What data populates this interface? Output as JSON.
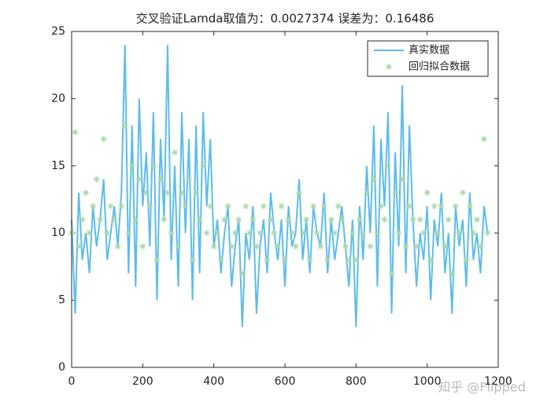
{
  "chart_data": {
    "type": "line_scatter",
    "title": "交叉验证Lamda取值为：0.0027374   误差为：0.16486",
    "x": [
      0,
      10,
      20,
      30,
      40,
      50,
      60,
      70,
      80,
      90,
      100,
      110,
      120,
      130,
      140,
      150,
      160,
      170,
      180,
      190,
      200,
      210,
      220,
      230,
      240,
      250,
      260,
      270,
      280,
      290,
      300,
      310,
      320,
      330,
      340,
      350,
      360,
      370,
      380,
      390,
      400,
      410,
      420,
      430,
      440,
      450,
      460,
      470,
      480,
      490,
      500,
      510,
      520,
      530,
      540,
      550,
      560,
      570,
      580,
      590,
      600,
      610,
      620,
      630,
      640,
      650,
      660,
      670,
      680,
      690,
      700,
      710,
      720,
      730,
      740,
      750,
      760,
      770,
      780,
      790,
      800,
      810,
      820,
      830,
      840,
      850,
      860,
      870,
      880,
      890,
      900,
      910,
      920,
      930,
      940,
      950,
      960,
      970,
      980,
      990,
      1000,
      1010,
      1020,
      1030,
      1040,
      1050,
      1060,
      1070,
      1080,
      1090,
      1100,
      1110,
      1120,
      1130,
      1140,
      1150,
      1160,
      1170
    ],
    "series": [
      {
        "name": "真实数据",
        "color": "#5dbcee",
        "mode": "line",
        "values": [
          11,
          4,
          13,
          8,
          10,
          7,
          12,
          9,
          11,
          14,
          8,
          10,
          12,
          9,
          13,
          24,
          7,
          18,
          6,
          20,
          12,
          16,
          9,
          19,
          5,
          17,
          11,
          24,
          8,
          15,
          6,
          19,
          10,
          17,
          5,
          18,
          7,
          19,
          12,
          17,
          9,
          11,
          7,
          10,
          12,
          6,
          9,
          11,
          3,
          10,
          8,
          12,
          4,
          9,
          11,
          7,
          13,
          10,
          8,
          11,
          6,
          12,
          9,
          10,
          14,
          8,
          11,
          7,
          12,
          10,
          9,
          13,
          7,
          11,
          8,
          10,
          12,
          9,
          6,
          11,
          3,
          12,
          8,
          15,
          10,
          18,
          6,
          17,
          12,
          19,
          4,
          16,
          9,
          21,
          7,
          18,
          11,
          6,
          10,
          8,
          12,
          5,
          11,
          9,
          13,
          7,
          10,
          4,
          12,
          9,
          11,
          6,
          13,
          8,
          10,
          7,
          12,
          10
        ]
      },
      {
        "name": "回归拟合数据",
        "color": "#aad9aa",
        "mode": "scatter",
        "values": [
          10,
          17.5,
          9,
          11,
          13,
          10,
          12,
          14,
          11,
          17,
          10,
          12,
          11,
          9,
          12,
          18,
          10,
          15,
          11,
          14,
          9,
          13,
          12,
          15,
          8,
          14,
          11,
          13,
          10,
          16,
          9,
          13,
          12,
          14,
          8,
          13,
          11,
          15,
          10,
          12,
          9,
          10,
          8,
          11,
          12,
          9,
          10,
          11,
          7,
          12,
          10,
          11,
          9,
          10,
          12,
          8,
          11,
          10,
          9,
          12,
          8,
          11,
          10,
          9,
          13,
          10,
          11,
          8,
          12,
          10,
          9,
          12,
          8,
          11,
          10,
          12,
          11,
          9,
          8,
          10,
          8,
          11,
          10,
          13,
          9,
          14,
          10,
          12,
          11,
          15,
          7,
          13,
          10,
          14,
          9,
          12,
          11,
          9,
          11,
          10,
          13,
          8,
          12,
          10,
          12,
          9,
          11,
          7,
          12,
          10,
          13,
          8,
          12,
          10,
          11,
          9,
          17,
          10
        ]
      }
    ],
    "xlim": [
      0,
      1200
    ],
    "xticks": [
      0,
      200,
      400,
      600,
      800,
      1000,
      1200
    ],
    "ylim": [
      0,
      25
    ],
    "yticks": [
      0,
      5,
      10,
      15,
      20,
      25
    ],
    "legend": "upper right",
    "watermark": "知乎 @Flipped"
  }
}
